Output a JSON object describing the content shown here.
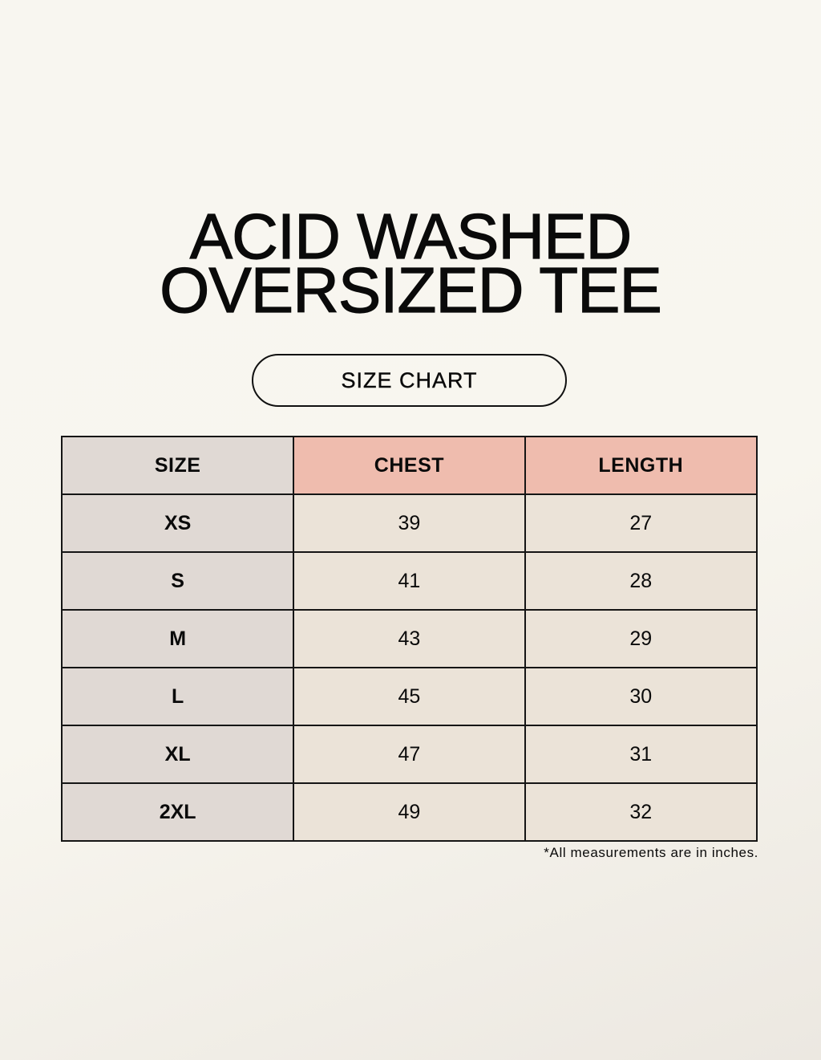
{
  "title": {
    "line1": "ACID WASHED",
    "line2": "OVERSIZED TEE"
  },
  "badge": "SIZE CHART",
  "table": {
    "headers": [
      "SIZE",
      "CHEST",
      "LENGTH"
    ],
    "rows": [
      [
        "XS",
        "39",
        "27"
      ],
      [
        "S",
        "41",
        "28"
      ],
      [
        "M",
        "43",
        "29"
      ],
      [
        "L",
        "45",
        "30"
      ],
      [
        "XL",
        "47",
        "31"
      ],
      [
        "2XL",
        "49",
        "32"
      ]
    ]
  },
  "note": "*All measurements are in inches.",
  "colors": {
    "size_column": "#e0d9d4",
    "header_accent": "#efbcae",
    "cells": "#ebe3d8"
  }
}
